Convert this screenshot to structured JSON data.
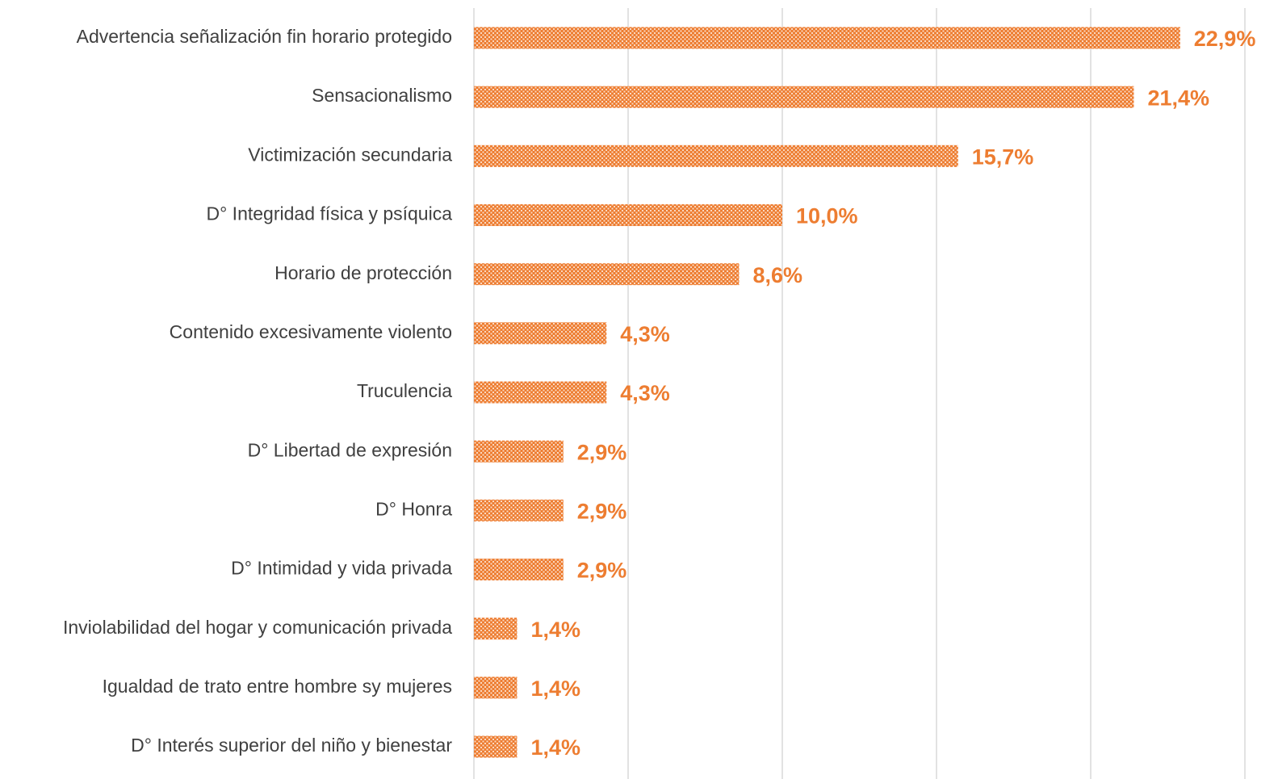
{
  "chart_data": {
    "type": "barh",
    "categories": [
      "Advertencia señalización fin horario protegido",
      "Sensacionalismo",
      "Victimización secundaria",
      "D° Integridad física y psíquica",
      "Horario de protección",
      "Contenido excesivamente violento",
      "Truculencia",
      "D° Libertad de expresión",
      "D° Honra",
      "D° Intimidad y vida privada",
      "Inviolabilidad del hogar y comunicación privada",
      "Igualdad de trato entre hombre sy mujeres",
      "D° Interés superior del niño y bienestar"
    ],
    "values": [
      22.9,
      21.4,
      15.7,
      10.0,
      8.6,
      4.3,
      4.3,
      2.9,
      2.9,
      2.9,
      1.4,
      1.4,
      1.4
    ],
    "value_labels": [
      "22,9%",
      "21,4%",
      "15,7%",
      "10,0%",
      "8,6%",
      "4,3%",
      "4,3%",
      "2,9%",
      "2,9%",
      "2,9%",
      "1,4%",
      "1,4%",
      "1,4%"
    ],
    "color": "#ed7d31",
    "xlim": [
      0,
      25
    ],
    "xticks": [
      0,
      5,
      10,
      15,
      20,
      25
    ],
    "grid": true
  }
}
